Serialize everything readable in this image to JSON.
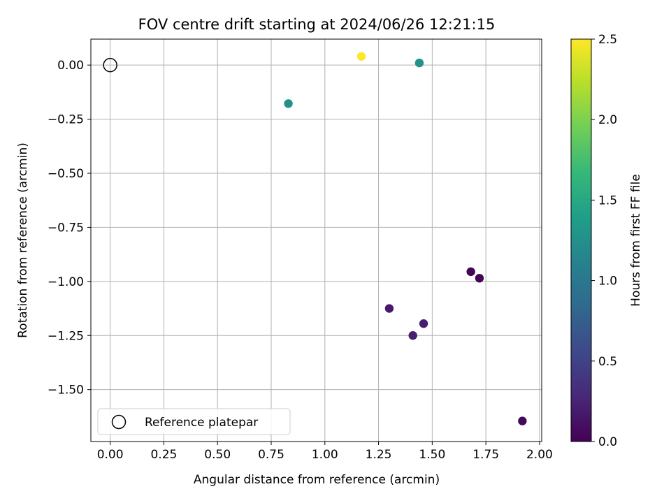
{
  "chart_data": {
    "type": "scatter",
    "title": "FOV centre drift starting at 2024/06/26 12:21:15",
    "xlabel": "Angular distance from reference (arcmin)",
    "ylabel": "Rotation from reference (arcmin)",
    "xlim": [
      -0.09,
      2.01
    ],
    "ylim": [
      -1.74,
      0.12
    ],
    "x_ticks": [
      0.0,
      0.25,
      0.5,
      0.75,
      1.0,
      1.25,
      1.5,
      1.75,
      2.0
    ],
    "x_tick_labels": [
      "0.00",
      "0.25",
      "0.50",
      "0.75",
      "1.00",
      "1.25",
      "1.50",
      "1.75",
      "2.00"
    ],
    "y_ticks": [
      0.0,
      -0.25,
      -0.5,
      -0.75,
      -1.0,
      -1.25,
      -1.5
    ],
    "y_tick_labels": [
      "0.00",
      "−0.25",
      "−0.50",
      "−0.75",
      "−1.00",
      "−1.25",
      "−1.50"
    ],
    "grid": true,
    "legend": {
      "position": "lower-left",
      "entries": [
        "Reference platepar"
      ]
    },
    "reference_point": {
      "x": 0.0,
      "y": 0.0,
      "label": "Reference platepar"
    },
    "points": [
      {
        "x": 1.68,
        "y": -0.955,
        "c": 0.03
      },
      {
        "x": 1.72,
        "y": -0.985,
        "c": 0.03
      },
      {
        "x": 1.92,
        "y": -1.645,
        "c": 0.05
      },
      {
        "x": 1.3,
        "y": -1.125,
        "c": 0.18
      },
      {
        "x": 1.46,
        "y": -1.195,
        "c": 0.2
      },
      {
        "x": 1.41,
        "y": -1.25,
        "c": 0.22
      },
      {
        "x": 0.83,
        "y": -0.178,
        "c": 1.25
      },
      {
        "x": 1.44,
        "y": 0.01,
        "c": 1.27
      },
      {
        "x": 1.17,
        "y": 0.04,
        "c": 2.5
      }
    ],
    "colorbar": {
      "label": "Hours from first FF file",
      "min": 0.0,
      "max": 2.5,
      "ticks": [
        0.0,
        0.5,
        1.0,
        1.5,
        2.0,
        2.5
      ],
      "tick_labels": [
        "0.0",
        "0.5",
        "1.0",
        "1.5",
        "2.0",
        "2.5"
      ],
      "colormap": "viridis"
    },
    "colors": {
      "viridis": [
        "#440154",
        "#482878",
        "#3e4989",
        "#31688e",
        "#26828e",
        "#1f9e89",
        "#35b779",
        "#6ece58",
        "#b5de2b",
        "#fde725"
      ]
    }
  }
}
